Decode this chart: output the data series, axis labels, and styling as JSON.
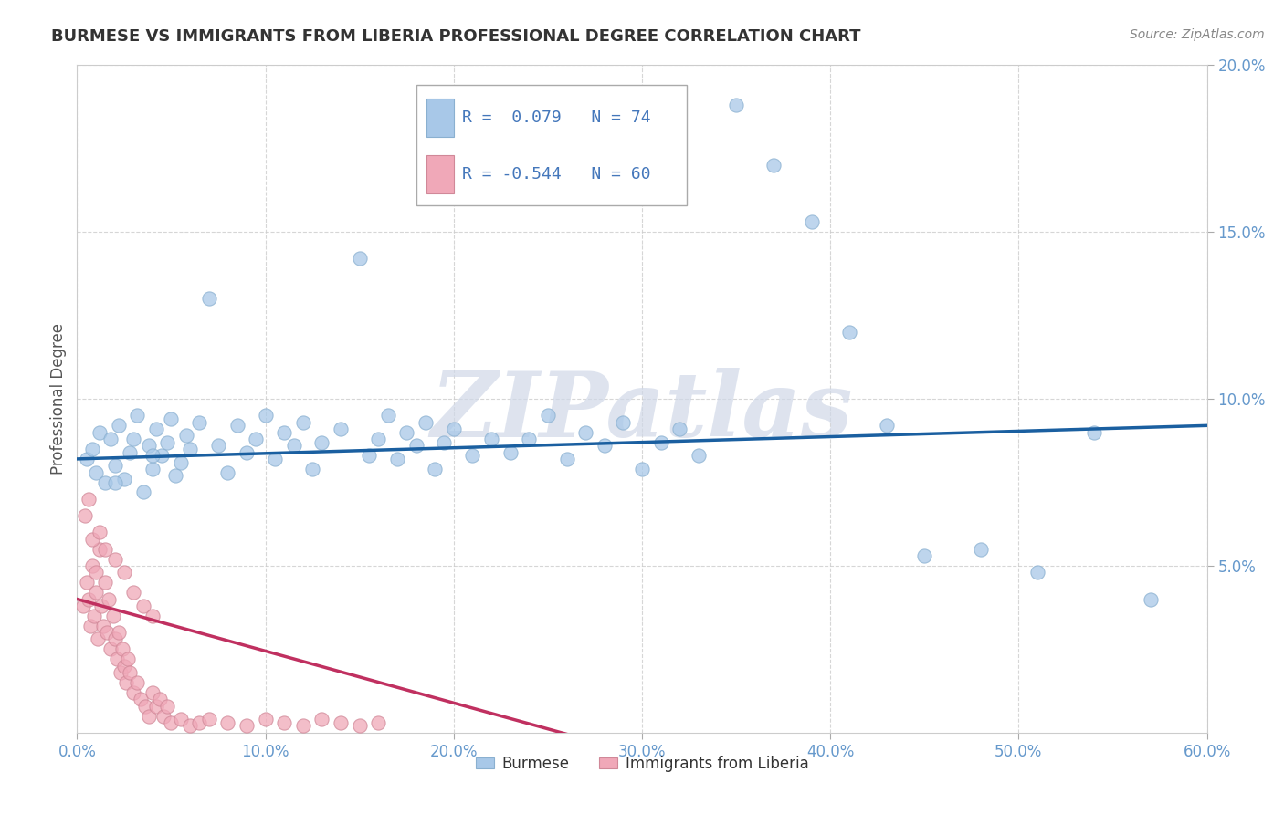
{
  "title": "BURMESE VS IMMIGRANTS FROM LIBERIA PROFESSIONAL DEGREE CORRELATION CHART",
  "source_text": "Source: ZipAtlas.com",
  "ylabel": "Professional Degree",
  "xlim": [
    0.0,
    0.6
  ],
  "ylim": [
    0.0,
    0.2
  ],
  "xtick_labels": [
    "0.0%",
    "10.0%",
    "20.0%",
    "30.0%",
    "40.0%",
    "50.0%",
    "60.0%"
  ],
  "xtick_vals": [
    0.0,
    0.1,
    0.2,
    0.3,
    0.4,
    0.5,
    0.6
  ],
  "ytick_labels": [
    "5.0%",
    "10.0%",
    "15.0%",
    "20.0%"
  ],
  "ytick_vals": [
    0.05,
    0.1,
    0.15,
    0.2
  ],
  "burmese_R": 0.079,
  "burmese_N": 74,
  "liberia_R": -0.544,
  "liberia_N": 60,
  "burmese_color": "#a8c8e8",
  "liberia_color": "#f0a8b8",
  "burmese_line_color": "#1a5fa0",
  "liberia_line_color": "#c03060",
  "watermark": "ZIPatlas",
  "background_color": "#ffffff",
  "grid_color": "#cccccc",
  "title_color": "#333333",
  "axis_label_color": "#555555",
  "tick_label_color": "#6699cc",
  "legend_R_color": "#4477bb",
  "source_color": "#888888",
  "burmese_x": [
    0.005,
    0.008,
    0.01,
    0.012,
    0.015,
    0.018,
    0.02,
    0.022,
    0.025,
    0.028,
    0.03,
    0.032,
    0.035,
    0.038,
    0.04,
    0.042,
    0.045,
    0.048,
    0.05,
    0.052,
    0.055,
    0.058,
    0.06,
    0.065,
    0.07,
    0.075,
    0.08,
    0.085,
    0.09,
    0.095,
    0.1,
    0.105,
    0.11,
    0.115,
    0.12,
    0.125,
    0.13,
    0.14,
    0.15,
    0.155,
    0.16,
    0.165,
    0.17,
    0.175,
    0.18,
    0.185,
    0.19,
    0.195,
    0.2,
    0.21,
    0.22,
    0.23,
    0.24,
    0.25,
    0.26,
    0.27,
    0.28,
    0.29,
    0.3,
    0.31,
    0.32,
    0.33,
    0.35,
    0.37,
    0.39,
    0.41,
    0.43,
    0.45,
    0.48,
    0.51,
    0.54,
    0.57,
    0.02,
    0.04
  ],
  "burmese_y": [
    0.082,
    0.085,
    0.078,
    0.09,
    0.075,
    0.088,
    0.08,
    0.092,
    0.076,
    0.084,
    0.088,
    0.095,
    0.072,
    0.086,
    0.079,
    0.091,
    0.083,
    0.087,
    0.094,
    0.077,
    0.081,
    0.089,
    0.085,
    0.093,
    0.13,
    0.086,
    0.078,
    0.092,
    0.084,
    0.088,
    0.095,
    0.082,
    0.09,
    0.086,
    0.093,
    0.079,
    0.087,
    0.091,
    0.142,
    0.083,
    0.088,
    0.095,
    0.082,
    0.09,
    0.086,
    0.093,
    0.079,
    0.087,
    0.091,
    0.083,
    0.088,
    0.084,
    0.088,
    0.095,
    0.082,
    0.09,
    0.086,
    0.093,
    0.079,
    0.087,
    0.091,
    0.083,
    0.188,
    0.17,
    0.153,
    0.12,
    0.092,
    0.053,
    0.055,
    0.048,
    0.09,
    0.04,
    0.075,
    0.083
  ],
  "liberia_x": [
    0.003,
    0.005,
    0.006,
    0.007,
    0.008,
    0.009,
    0.01,
    0.01,
    0.011,
    0.012,
    0.013,
    0.014,
    0.015,
    0.016,
    0.017,
    0.018,
    0.019,
    0.02,
    0.021,
    0.022,
    0.023,
    0.024,
    0.025,
    0.026,
    0.027,
    0.028,
    0.03,
    0.032,
    0.034,
    0.036,
    0.038,
    0.04,
    0.042,
    0.044,
    0.046,
    0.048,
    0.05,
    0.055,
    0.06,
    0.065,
    0.07,
    0.08,
    0.09,
    0.1,
    0.11,
    0.12,
    0.13,
    0.14,
    0.15,
    0.16,
    0.004,
    0.006,
    0.008,
    0.012,
    0.015,
    0.02,
    0.025,
    0.03,
    0.035,
    0.04
  ],
  "liberia_y": [
    0.038,
    0.045,
    0.04,
    0.032,
    0.05,
    0.035,
    0.042,
    0.048,
    0.028,
    0.055,
    0.038,
    0.032,
    0.045,
    0.03,
    0.04,
    0.025,
    0.035,
    0.028,
    0.022,
    0.03,
    0.018,
    0.025,
    0.02,
    0.015,
    0.022,
    0.018,
    0.012,
    0.015,
    0.01,
    0.008,
    0.005,
    0.012,
    0.008,
    0.01,
    0.005,
    0.008,
    0.003,
    0.004,
    0.002,
    0.003,
    0.004,
    0.003,
    0.002,
    0.004,
    0.003,
    0.002,
    0.004,
    0.003,
    0.002,
    0.003,
    0.065,
    0.07,
    0.058,
    0.06,
    0.055,
    0.052,
    0.048,
    0.042,
    0.038,
    0.035
  ],
  "burmese_trend": [
    0.0,
    0.6,
    0.082,
    0.092
  ],
  "liberia_trend": [
    0.0,
    0.27,
    0.04,
    -0.002
  ]
}
